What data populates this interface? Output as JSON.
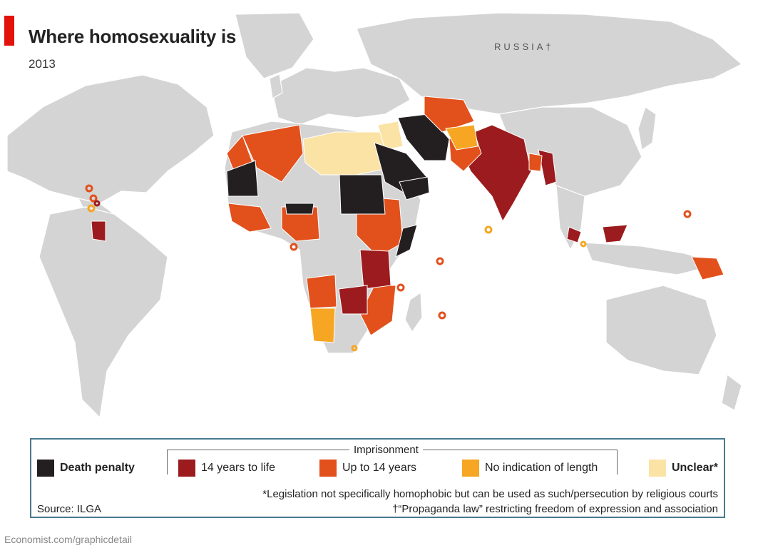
{
  "header": {
    "title": "Where homosexuality is illegal",
    "subtitle": "2013"
  },
  "map": {
    "labels": {
      "russia": "RUSSIA†"
    },
    "colors": {
      "ocean": "#ffffff",
      "land": "#d4d4d4",
      "death_penalty": "#231f20",
      "fourteen_to_life": "#9b1b1e",
      "up_to_14": "#e2501c",
      "no_indication": "#f6a623",
      "unclear": "#fbe3a6"
    }
  },
  "legend": {
    "group_title": "Imprisonment",
    "items": [
      {
        "label": "Death penalty",
        "color": "#231f20"
      },
      {
        "label": "14 years to life",
        "color": "#9b1b1e"
      },
      {
        "label": "Up to 14 years",
        "color": "#e2501c"
      },
      {
        "label": "No indication of length",
        "color": "#f6a623"
      },
      {
        "label": "Unclear*",
        "color": "#fbe3a6"
      }
    ],
    "note_unclear": "*Legislation not specifically homophobic but can be used as such/persecution by religious courts",
    "note_russia": "†“Propaganda law” restricting freedom of expression and association",
    "source": "Source: ILGA"
  },
  "footer": {
    "credit": "Economist.com/graphicdetail"
  }
}
